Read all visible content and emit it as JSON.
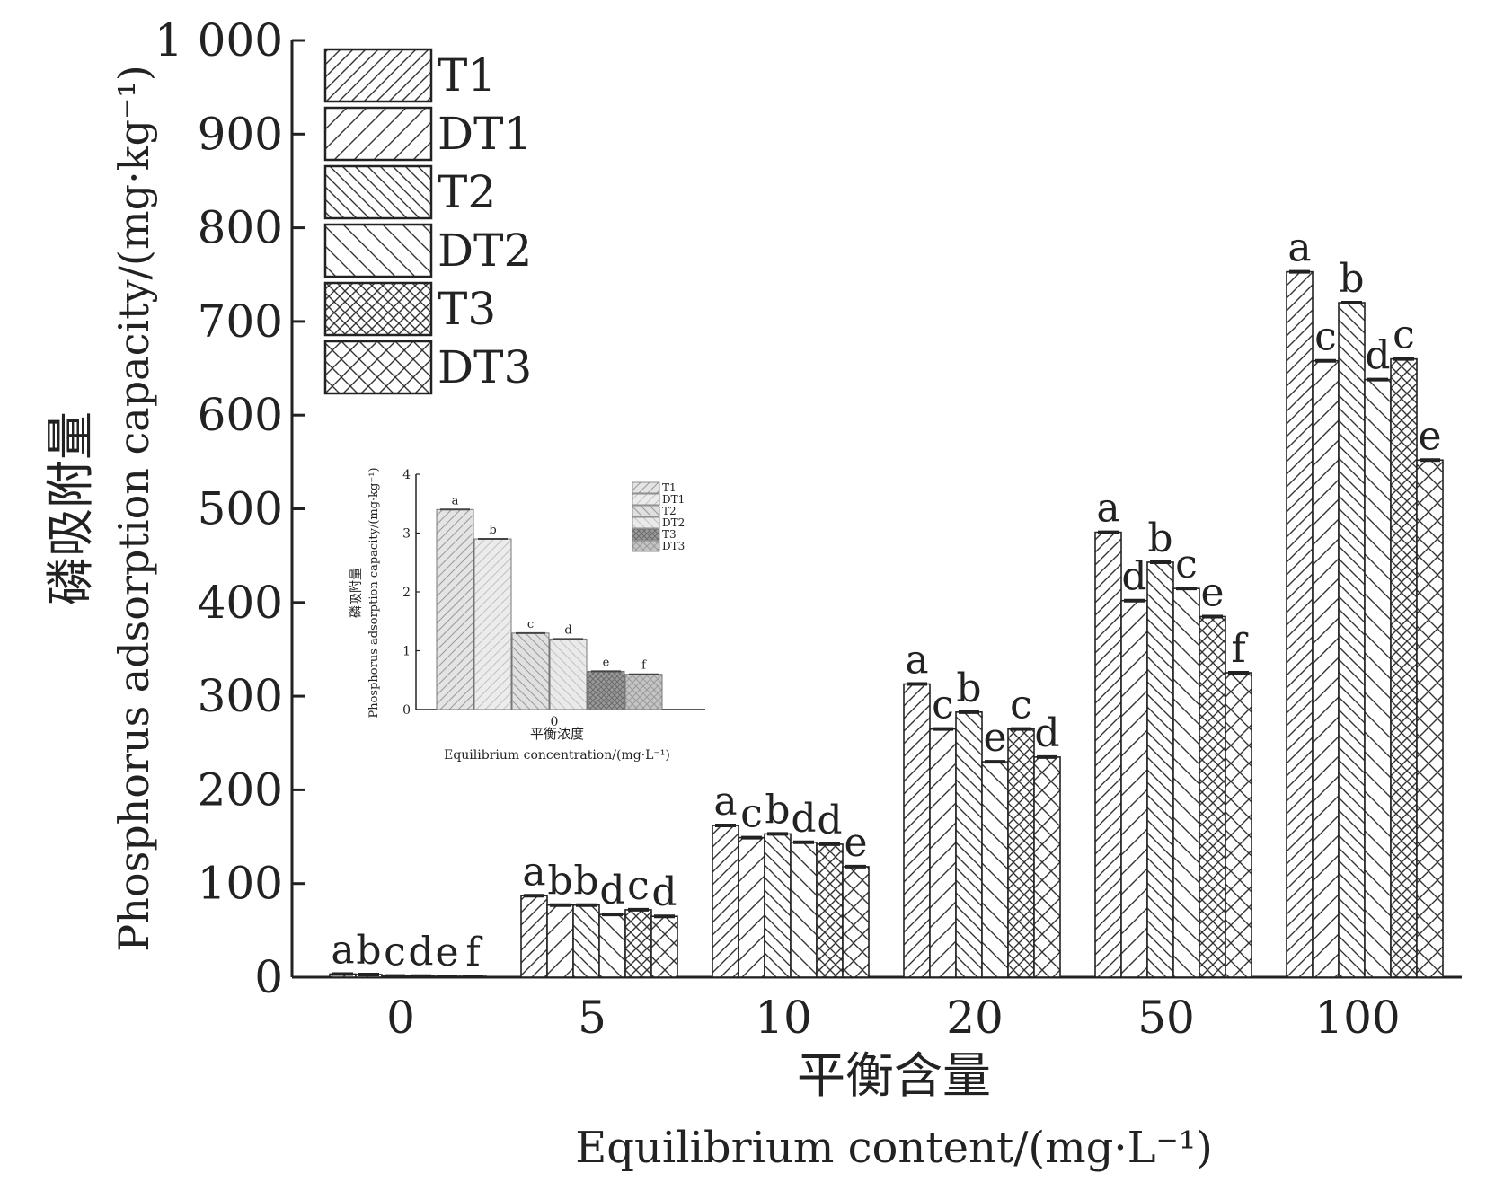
{
  "chart_data": [
    {
      "type": "bar",
      "title": "",
      "ylabel_cn": "磷吸附量",
      "ylabel_en": "Phosphorus adsorption capacity/(mg·kg⁻¹)",
      "xlabel_cn": "平衡含量",
      "xlabel_en": "Equilibrium content/(mg·L⁻¹)",
      "ylim": [
        0,
        1000
      ],
      "yticks": [
        0,
        100,
        200,
        300,
        400,
        500,
        600,
        700,
        800,
        900,
        1000
      ],
      "ytick_labels": [
        "0",
        "100",
        "200",
        "300",
        "400",
        "500",
        "600",
        "700",
        "800",
        "900",
        "1 000"
      ],
      "categories": [
        "0",
        "5",
        "10",
        "20",
        "50",
        "100"
      ],
      "legend_position": "top-left",
      "series": [
        {
          "name": "T1",
          "pattern": "diag-right-dense",
          "values": [
            3.4,
            87,
            162,
            313,
            475,
            753
          ],
          "labels": [
            "a",
            "a",
            "a",
            "a",
            "a",
            "a"
          ]
        },
        {
          "name": "DT1",
          "pattern": "diag-right-sparse",
          "values": [
            2.9,
            77,
            149,
            265,
            402,
            658
          ],
          "labels": [
            "b",
            "b",
            "c",
            "c",
            "d",
            "c"
          ]
        },
        {
          "name": "T2",
          "pattern": "diag-left-dense",
          "values": [
            1.3,
            77,
            153,
            283,
            443,
            720
          ],
          "labels": [
            "c",
            "b",
            "b",
            "b",
            "b",
            "b"
          ]
        },
        {
          "name": "DT2",
          "pattern": "diag-left-sparse",
          "values": [
            1.2,
            67,
            144,
            230,
            415,
            638
          ],
          "labels": [
            "d",
            "d",
            "d",
            "e",
            "c",
            "d"
          ]
        },
        {
          "name": "T3",
          "pattern": "cross-dense",
          "values": [
            0.65,
            72,
            142,
            265,
            385,
            660
          ],
          "labels": [
            "e",
            "c",
            "d",
            "c",
            "e",
            "c"
          ]
        },
        {
          "name": "DT3",
          "pattern": "cross-sparse",
          "values": [
            0.6,
            65,
            118,
            235,
            325,
            552
          ],
          "labels": [
            "f",
            "d",
            "e",
            "d",
            "f",
            "e"
          ]
        }
      ]
    },
    {
      "type": "bar",
      "title": "",
      "ylabel_cn": "磷吸附量",
      "ylabel_en": "Phosphorus adsorption capacity/(mg·kg⁻¹)",
      "xlabel_cn": "平衡浓度",
      "xlabel_en": "Equilibrium concentration/(mg·L⁻¹)",
      "ylim": [
        0,
        4
      ],
      "yticks": [
        0,
        1,
        2,
        3,
        4
      ],
      "ytick_labels": [
        "0",
        "1",
        "2",
        "3",
        "4"
      ],
      "categories": [
        "0"
      ],
      "legend_position": "top-right",
      "series": [
        {
          "name": "T1",
          "pattern": "diag-right-dense",
          "values": [
            3.4
          ],
          "labels": [
            "a"
          ]
        },
        {
          "name": "DT1",
          "pattern": "diag-right-sparse",
          "values": [
            2.9
          ],
          "labels": [
            "b"
          ]
        },
        {
          "name": "T2",
          "pattern": "diag-left-dense",
          "values": [
            1.3
          ],
          "labels": [
            "c"
          ]
        },
        {
          "name": "DT2",
          "pattern": "diag-left-sparse",
          "values": [
            1.2
          ],
          "labels": [
            "d"
          ]
        },
        {
          "name": "T3",
          "pattern": "cross-dense",
          "values": [
            0.65
          ],
          "labels": [
            "e"
          ]
        },
        {
          "name": "DT3",
          "pattern": "cross-sparse",
          "values": [
            0.6
          ],
          "labels": [
            "f"
          ]
        }
      ]
    }
  ]
}
